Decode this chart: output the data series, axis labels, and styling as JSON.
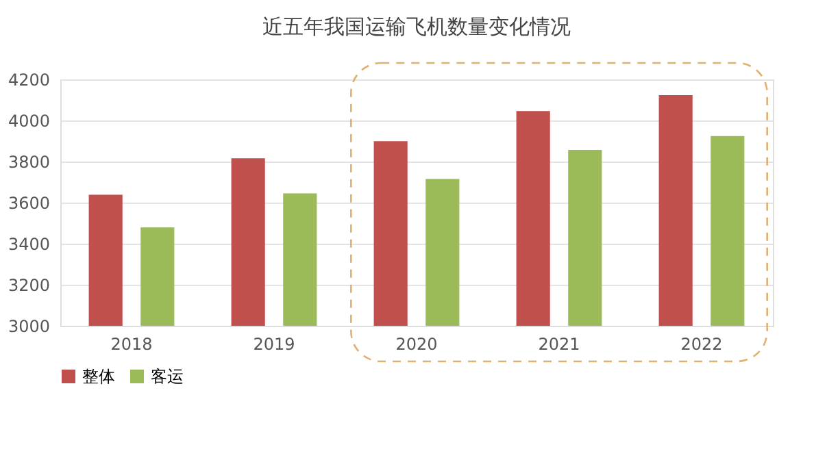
{
  "chart_data": {
    "type": "bar",
    "title": "近五年我国运输飞机数量变化情况",
    "categories": [
      "2018",
      "2019",
      "2020",
      "2021",
      "2022"
    ],
    "series": [
      {
        "name": "整体",
        "color": "#c0504d",
        "values": [
          3638,
          3816,
          3899,
          4046,
          4123
        ]
      },
      {
        "name": "客运",
        "color": "#9bbb59",
        "values": [
          3479,
          3645,
          3715,
          3857,
          3924
        ]
      }
    ],
    "ylim": [
      3000,
      4200
    ],
    "yticks": [
      3000,
      3200,
      3400,
      3600,
      3800,
      4000,
      4200
    ],
    "grid": "y",
    "legend": "bottom"
  }
}
